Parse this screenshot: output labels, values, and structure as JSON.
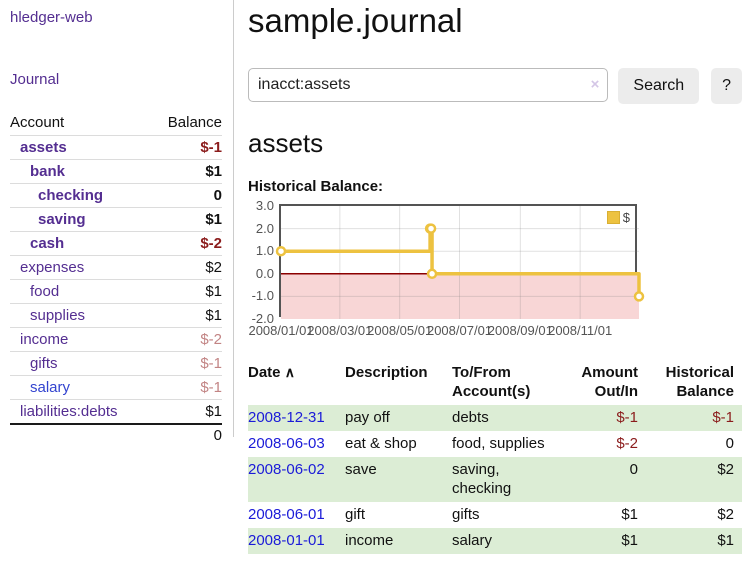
{
  "sidebar": {
    "app_title": "hledger-web",
    "journal_label": "Journal",
    "accounts_table": {
      "header_account": "Account",
      "header_balance": "Balance",
      "rows": [
        {
          "name": "assets",
          "balance": "$-1",
          "name_cls": "lvl1 em",
          "bal_cls": "neg-strong"
        },
        {
          "name": "bank",
          "balance": "$1",
          "name_cls": "lvl2 em",
          "bal_cls": "pos-strong"
        },
        {
          "name": "checking",
          "balance": "0",
          "name_cls": "lvl3 em",
          "bal_cls": "pos-strong"
        },
        {
          "name": "saving",
          "balance": "$1",
          "name_cls": "lvl3 em",
          "bal_cls": "pos-strong"
        },
        {
          "name": "cash",
          "balance": "$-2",
          "name_cls": "lvl2 em",
          "bal_cls": "neg-strong"
        },
        {
          "name": "expenses",
          "balance": "$2",
          "name_cls": "lvl1",
          "bal_cls": "pos"
        },
        {
          "name": "food",
          "balance": "$1",
          "name_cls": "lvl2",
          "bal_cls": "pos"
        },
        {
          "name": "supplies",
          "balance": "$1",
          "name_cls": "lvl2",
          "bal_cls": "pos"
        },
        {
          "name": "income",
          "balance": "$-2",
          "name_cls": "lvl1",
          "bal_cls": "neg-faded"
        },
        {
          "name": "gifts",
          "balance": "$-1",
          "name_cls": "lvl2",
          "bal_cls": "neg-faded"
        },
        {
          "name": "salary",
          "balance": "$-1",
          "name_cls": "lvl2 unvisited",
          "bal_cls": "neg-faded"
        },
        {
          "name": "liabilities:debts",
          "balance": "$1",
          "name_cls": "lvl1",
          "bal_cls": "pos"
        }
      ],
      "total": "0"
    }
  },
  "main": {
    "title": "sample.journal",
    "search": {
      "value": "inacct:assets",
      "clear_icon": "×",
      "search_button": "Search",
      "help_button": "?"
    },
    "account_heading": "assets",
    "chart_heading": "Historical Balance:",
    "register": {
      "headers": {
        "date": "Date",
        "sort_icon": "∧",
        "description": "Description",
        "tofrom_line1": "To/From",
        "tofrom_line2": "Account(s)",
        "amount_line1": "Amount",
        "amount_line2": "Out/In",
        "historical_line1": "Historical",
        "historical_line2": "Balance"
      },
      "rows": [
        {
          "date": "2008-12-31",
          "description": "pay off",
          "tofrom": "debts",
          "amount": "$-1",
          "historical": "$-1",
          "amount_cls": "neg",
          "historical_cls": "neg",
          "row_cls": "striped"
        },
        {
          "date": "2008-06-03",
          "description": "eat & shop",
          "tofrom": "food, supplies",
          "amount": "$-2",
          "historical": "0",
          "amount_cls": "neg",
          "historical_cls": "",
          "row_cls": ""
        },
        {
          "date": "2008-06-02",
          "description": "save",
          "tofrom": "saving, checking",
          "amount": "0",
          "historical": "$2",
          "amount_cls": "",
          "historical_cls": "",
          "row_cls": "striped"
        },
        {
          "date": "2008-06-01",
          "description": "gift",
          "tofrom": "gifts",
          "amount": "$1",
          "historical": "$2",
          "amount_cls": "",
          "historical_cls": "",
          "row_cls": ""
        },
        {
          "date": "2008-01-01",
          "description": "income",
          "tofrom": "salary",
          "amount": "$1",
          "historical": "$1",
          "amount_cls": "",
          "historical_cls": "",
          "row_cls": "striped"
        }
      ]
    }
  },
  "chart_data": {
    "type": "line",
    "title": "Historical Balance:",
    "steps": true,
    "series": [
      {
        "name": "$",
        "color": "#edc240",
        "points": [
          [
            "2008-01-01",
            1
          ],
          [
            "2008-06-01",
            2
          ],
          [
            "2008-06-02",
            2
          ],
          [
            "2008-06-03",
            0
          ],
          [
            "2008-12-31",
            -1
          ]
        ]
      }
    ],
    "x_range": [
      "2008-01-01",
      "2008-12-31"
    ],
    "x_ticks": [
      "2008/01/01",
      "2008/03/01",
      "2008/05/01",
      "2008/07/01",
      "2008/09/01",
      "2008/11/01"
    ],
    "y_ticks": [
      "3.0",
      "2.0",
      "1.0",
      "0.0",
      "-1.0",
      "-2.0"
    ],
    "ylim": [
      -2,
      3
    ],
    "grid": true,
    "legend_position": "top-right",
    "zero_line_color": "#8b0000",
    "negative_region_color": "#f8d6d6",
    "grid_color": "rgba(120,120,120,0.22)",
    "border_color": "#545454"
  }
}
